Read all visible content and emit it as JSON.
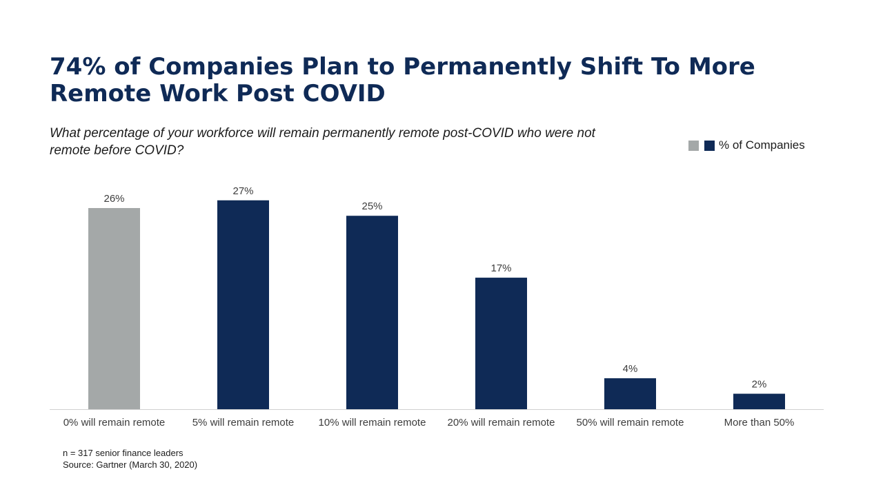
{
  "chart_data": {
    "type": "bar",
    "title": "74% of Companies Plan to Permanently Shift To More Remote Work Post COVID",
    "subtitle": "What percentage of your workforce will remain permanently remote post-COVID who were not remote before COVID?",
    "categories": [
      "0% will remain remote",
      "5% will remain remote",
      "10% will remain remote",
      "20% will remain remote",
      "50% will remain remote",
      "More than 50%"
    ],
    "series": [
      {
        "name": "% of Companies",
        "values": [
          26,
          27,
          25,
          17,
          4,
          2
        ],
        "data_labels": [
          "26%",
          "27%",
          "25%",
          "17%",
          "4%",
          "2%"
        ]
      }
    ],
    "bar_colors": [
      "#a4a8a8",
      "#0f2a56",
      "#0f2a56",
      "#0f2a56",
      "#0f2a56",
      "#0f2a56"
    ],
    "xlabel": "",
    "ylabel": "",
    "ylim": [
      0,
      30
    ],
    "grid": false,
    "legend_position": "top-right"
  },
  "legend": {
    "label": "% of Companies",
    "colors": [
      "#a4a8a8",
      "#0f2a56"
    ]
  },
  "footer": {
    "sample": "n = 317 senior finance leaders",
    "source": "Source: Gartner (March 30, 2020)"
  }
}
